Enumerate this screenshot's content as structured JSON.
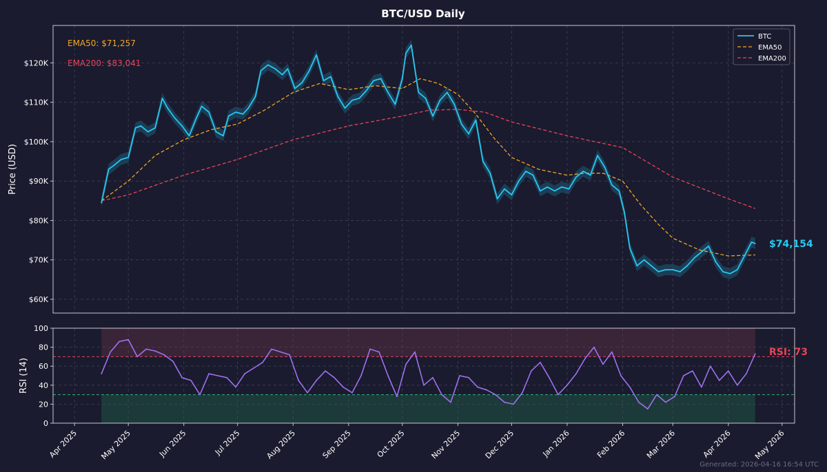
{
  "colors": {
    "background": "#1a1b2e",
    "axes_edge": "#c8c8d0",
    "grid": "#4a4b60",
    "text": "#ffffff",
    "btc": "#29c8f0",
    "btc_band": "#1f5a78",
    "ema50": "#f5a623",
    "ema200": "#e94458",
    "rsi": "#a070f0",
    "overbought_fill": "#3a2438",
    "oversold_fill": "#1c3a3a",
    "overbought_line": "#e94458",
    "oversold_line": "#2fb87a",
    "footer": "#6b6c80"
  },
  "title": "BTC/USD Daily",
  "footer": "Generated: 2026-04-16 16:54 UTC",
  "annotations": {
    "ema50": "EMA50: $71,257",
    "ema200": "EMA200: $83,041",
    "last_price": "$74,154",
    "rsi": "RSI: 73"
  },
  "legend": {
    "placement": "top-right",
    "items": [
      {
        "label": "BTC",
        "style": "solid",
        "color_key": "btc"
      },
      {
        "label": "EMA50",
        "style": "dashed",
        "color_key": "ema50"
      },
      {
        "label": "EMA200",
        "style": "dashed",
        "color_key": "ema200"
      }
    ]
  },
  "chart_data": [
    {
      "type": "line",
      "title": "BTC/USD Daily",
      "ylabel": "Price (USD)",
      "xlim": [
        "2025-03-20",
        "2026-05-08"
      ],
      "ylim": [
        56500,
        129500
      ],
      "y_ticks": [
        60000,
        70000,
        80000,
        90000,
        100000,
        110000,
        120000
      ],
      "y_tick_labels": [
        "$60K",
        "$70K",
        "$80K",
        "$90K",
        "$100K",
        "$110K",
        "$120K"
      ],
      "x_ticks": [
        "2025-04-01",
        "2025-05-01",
        "2025-06-01",
        "2025-07-01",
        "2025-08-01",
        "2025-09-01",
        "2025-10-01",
        "2025-11-01",
        "2025-12-01",
        "2026-01-01",
        "2026-02-01",
        "2026-03-01",
        "2026-04-01",
        "2026-05-01"
      ],
      "x_tick_labels": [
        "Apr 2025",
        "May 2025",
        "Jun 2025",
        "Jul 2025",
        "Aug 2025",
        "Sep 2025",
        "Oct 2025",
        "Nov 2025",
        "Dec 2025",
        "Jan 2026",
        "Feb 2026",
        "Mar 2026",
        "Apr 2026",
        "May 2026"
      ],
      "grid": true,
      "series": [
        {
          "name": "BTC",
          "x": [
            "2025-04-16",
            "2025-04-20",
            "2025-04-23",
            "2025-04-27",
            "2025-05-01",
            "2025-05-05",
            "2025-05-08",
            "2025-05-12",
            "2025-05-16",
            "2025-05-20",
            "2025-05-23",
            "2025-05-27",
            "2025-05-31",
            "2025-06-04",
            "2025-06-08",
            "2025-06-11",
            "2025-06-15",
            "2025-06-19",
            "2025-06-23",
            "2025-06-26",
            "2025-06-30",
            "2025-07-04",
            "2025-07-07",
            "2025-07-11",
            "2025-07-14",
            "2025-07-18",
            "2025-07-22",
            "2025-07-26",
            "2025-07-29",
            "2025-08-02",
            "2025-08-06",
            "2025-08-10",
            "2025-08-14",
            "2025-08-18",
            "2025-08-22",
            "2025-08-26",
            "2025-08-30",
            "2025-09-03",
            "2025-09-07",
            "2025-09-11",
            "2025-09-15",
            "2025-09-19",
            "2025-09-23",
            "2025-09-27",
            "2025-10-01",
            "2025-10-03",
            "2025-10-06",
            "2025-10-10",
            "2025-10-14",
            "2025-10-18",
            "2025-10-22",
            "2025-10-26",
            "2025-10-30",
            "2025-11-03",
            "2025-11-07",
            "2025-11-11",
            "2025-11-15",
            "2025-11-19",
            "2025-11-23",
            "2025-11-27",
            "2025-12-01",
            "2025-12-05",
            "2025-12-09",
            "2025-12-13",
            "2025-12-17",
            "2025-12-21",
            "2025-12-25",
            "2025-12-29",
            "2026-01-02",
            "2026-01-06",
            "2026-01-10",
            "2026-01-14",
            "2026-01-18",
            "2026-01-22",
            "2026-01-26",
            "2026-01-30",
            "2026-02-02",
            "2026-02-05",
            "2026-02-09",
            "2026-02-13",
            "2026-02-17",
            "2026-02-21",
            "2026-02-25",
            "2026-03-01",
            "2026-03-05",
            "2026-03-09",
            "2026-03-13",
            "2026-03-17",
            "2026-03-21",
            "2026-03-25",
            "2026-03-29",
            "2026-04-02",
            "2026-04-06",
            "2026-04-10",
            "2026-04-14",
            "2026-04-16"
          ],
          "values": [
            84500,
            93000,
            94000,
            95500,
            96000,
            103500,
            104000,
            102500,
            103500,
            111000,
            108500,
            106000,
            104000,
            101500,
            106000,
            109000,
            107500,
            102500,
            101500,
            106500,
            107500,
            107000,
            108500,
            111500,
            118000,
            119500,
            118500,
            117000,
            118500,
            113500,
            115000,
            118000,
            122000,
            115500,
            116500,
            111500,
            108500,
            110500,
            111000,
            113000,
            115500,
            116000,
            112500,
            109500,
            116000,
            122500,
            124500,
            112500,
            111000,
            106500,
            110500,
            112500,
            109500,
            104500,
            102000,
            105500,
            95000,
            92000,
            85500,
            88000,
            86500,
            90000,
            92500,
            91500,
            87500,
            88500,
            87500,
            88500,
            88000,
            91000,
            92500,
            91500,
            96500,
            93500,
            89000,
            87500,
            82000,
            73000,
            68500,
            70000,
            68500,
            67000,
            67500,
            67500,
            67000,
            68500,
            70500,
            72000,
            73500,
            69500,
            67000,
            66500,
            67500,
            71000,
            74500,
            74154
          ]
        },
        {
          "name": "EMA50",
          "x": [
            "2025-04-16",
            "2025-05-01",
            "2025-05-16",
            "2025-06-01",
            "2025-06-16",
            "2025-07-01",
            "2025-07-16",
            "2025-08-01",
            "2025-08-16",
            "2025-09-01",
            "2025-09-16",
            "2025-10-01",
            "2025-10-11",
            "2025-10-21",
            "2025-11-01",
            "2025-11-11",
            "2025-11-21",
            "2025-12-01",
            "2025-12-16",
            "2026-01-01",
            "2026-01-11",
            "2026-01-21",
            "2026-02-01",
            "2026-02-11",
            "2026-02-21",
            "2026-03-01",
            "2026-03-16",
            "2026-04-01",
            "2026-04-16"
          ],
          "values": [
            85000,
            90000,
            96500,
            100500,
            103000,
            104500,
            108000,
            112500,
            114800,
            113200,
            114200,
            113500,
            116000,
            114800,
            112000,
            107000,
            101000,
            96000,
            93000,
            91500,
            92000,
            92000,
            90000,
            84000,
            79000,
            75500,
            72500,
            71000,
            71257
          ]
        },
        {
          "name": "EMA200",
          "x": [
            "2025-04-16",
            "2025-05-01",
            "2025-06-01",
            "2025-07-01",
            "2025-08-01",
            "2025-09-01",
            "2025-10-01",
            "2025-10-16",
            "2025-11-01",
            "2025-11-16",
            "2025-12-01",
            "2026-01-01",
            "2026-02-01",
            "2026-03-01",
            "2026-04-01",
            "2026-04-16"
          ],
          "values": [
            85000,
            86500,
            91500,
            95500,
            100500,
            104000,
            106500,
            108000,
            108200,
            107500,
            105000,
            101500,
            98500,
            91000,
            85500,
            83041
          ]
        }
      ],
      "last_value": 74154,
      "ema50_last": 71257,
      "ema200_last": 83041
    },
    {
      "type": "line",
      "ylabel": "RSI (14)",
      "ylim": [
        0,
        100
      ],
      "y_ticks": [
        0,
        20,
        40,
        60,
        80,
        100
      ],
      "y_tick_labels": [
        "0",
        "20",
        "40",
        "60",
        "80",
        "100"
      ],
      "overbought": 70,
      "oversold": 30,
      "grid": true,
      "series": [
        {
          "name": "RSI",
          "x": [
            "2025-04-16",
            "2025-04-21",
            "2025-04-26",
            "2025-05-01",
            "2025-05-06",
            "2025-05-11",
            "2025-05-16",
            "2025-05-21",
            "2025-05-26",
            "2025-05-31",
            "2025-06-05",
            "2025-06-10",
            "2025-06-15",
            "2025-06-20",
            "2025-06-25",
            "2025-06-30",
            "2025-07-05",
            "2025-07-10",
            "2025-07-15",
            "2025-07-20",
            "2025-07-25",
            "2025-07-30",
            "2025-08-04",
            "2025-08-09",
            "2025-08-14",
            "2025-08-19",
            "2025-08-24",
            "2025-08-29",
            "2025-09-03",
            "2025-09-08",
            "2025-09-13",
            "2025-09-18",
            "2025-09-23",
            "2025-09-28",
            "2025-10-03",
            "2025-10-08",
            "2025-10-13",
            "2025-10-18",
            "2025-10-23",
            "2025-10-28",
            "2025-11-02",
            "2025-11-07",
            "2025-11-12",
            "2025-11-17",
            "2025-11-22",
            "2025-11-27",
            "2025-12-02",
            "2025-12-07",
            "2025-12-12",
            "2025-12-17",
            "2025-12-22",
            "2025-12-27",
            "2026-01-01",
            "2026-01-06",
            "2026-01-11",
            "2026-01-16",
            "2026-01-21",
            "2026-01-26",
            "2026-01-31",
            "2026-02-05",
            "2026-02-10",
            "2026-02-15",
            "2026-02-20",
            "2026-02-25",
            "2026-03-02",
            "2026-03-07",
            "2026-03-12",
            "2026-03-17",
            "2026-03-22",
            "2026-03-27",
            "2026-04-01",
            "2026-04-06",
            "2026-04-11",
            "2026-04-16"
          ],
          "values": [
            52,
            75,
            86,
            88,
            70,
            78,
            76,
            72,
            65,
            48,
            45,
            30,
            52,
            50,
            48,
            38,
            52,
            58,
            64,
            78,
            75,
            72,
            45,
            32,
            45,
            55,
            48,
            38,
            32,
            50,
            78,
            75,
            50,
            28,
            62,
            75,
            40,
            48,
            30,
            22,
            50,
            48,
            38,
            35,
            30,
            22,
            20,
            32,
            55,
            64,
            48,
            30,
            40,
            52,
            68,
            80,
            62,
            75,
            50,
            38,
            22,
            15,
            30,
            22,
            28,
            50,
            55,
            38,
            60,
            45,
            55,
            40,
            52,
            73
          ]
        }
      ],
      "last_value": 73
    }
  ]
}
